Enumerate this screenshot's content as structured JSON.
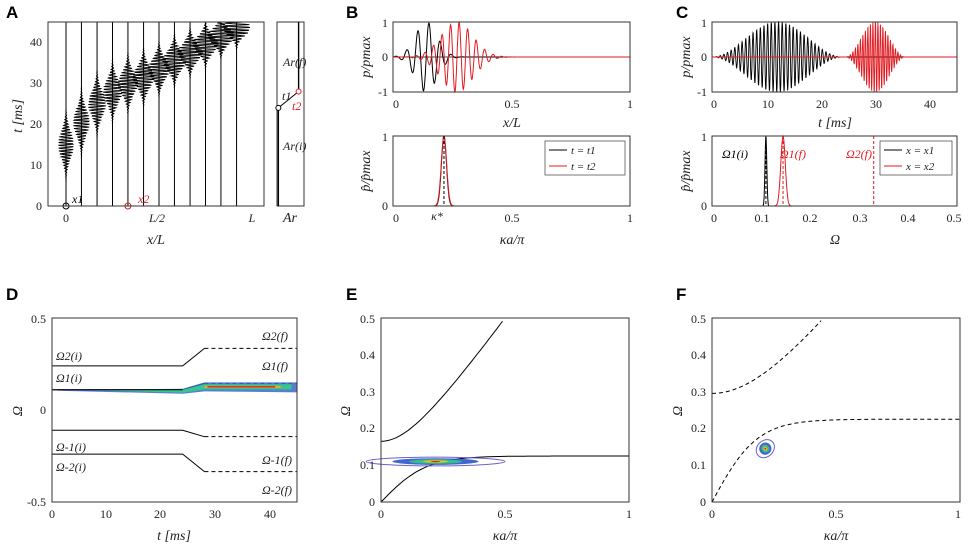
{
  "colors": {
    "fine_a": "#000000",
    "fine_b": "#e11b22",
    "frame": "#333333",
    "band": "#000000"
  },
  "panels": [
    {
      "label": "A",
      "xlabel": "x/L",
      "ylabel": "t [ms]",
      "xticks": [
        "0",
        "L/2",
        "L"
      ],
      "yticks": [
        "0",
        "10",
        "20",
        "30",
        "40"
      ],
      "ann": {
        "x1": "x1",
        "x2": "x2"
      },
      "ar": {
        "xlabel": "Ar",
        "ar_f": "Ar(f)",
        "ar_i": "Ar(i)",
        "t1": "t1",
        "t2": "t2"
      }
    },
    {
      "label": "B",
      "top": {
        "ylabel": "p/pmax",
        "xlabel": "x/L",
        "xticks": [
          "0",
          "0.5",
          "1"
        ],
        "yticks": [
          "1",
          "0",
          "-1"
        ]
      },
      "bottom": {
        "ylabel": "p̂/p̂max",
        "xlabel": "κa/π",
        "xticks": [
          "0",
          "0.5",
          "1"
        ],
        "yticks": [
          "1",
          "0"
        ],
        "kappa_star": "κ*",
        "legend": [
          "t = t1",
          "t = t2"
        ]
      }
    },
    {
      "label": "C",
      "top": {
        "ylabel": "p/pmax",
        "xlabel": "t [ms]",
        "xticks": [
          "0",
          "10",
          "20",
          "30",
          "40"
        ],
        "yticks": [
          "1",
          "0",
          "-1"
        ]
      },
      "bottom": {
        "ylabel": "p̂/p̂max",
        "xlabel": "Ω",
        "xticks": [
          "0",
          "0.1",
          "0.2",
          "0.3",
          "0.4",
          "0.5"
        ],
        "yticks": [
          "1",
          "0"
        ],
        "legend": [
          "x = x1",
          "x = x2"
        ],
        "ann": {
          "o1i": "Ω1(i)",
          "o1f": "Ω1(f)",
          "o2f": "Ω2(f)"
        }
      }
    },
    {
      "label": "D",
      "xlabel": "t [ms]",
      "ylabel": "Ω",
      "xticks": [
        "0",
        "10",
        "20",
        "30",
        "40"
      ],
      "yticks": [
        "0.5",
        "0",
        "-0.5"
      ],
      "branch_labels": [
        "Ω2(i)",
        "Ω1(i)",
        "Ω-1(i)",
        "Ω-2(i)",
        "Ω2(f)",
        "Ω1(f)",
        "Ω-1(f)",
        "Ω-2(f)"
      ]
    },
    {
      "label": "E",
      "xlabel": "κa/π",
      "ylabel": "Ω",
      "xticks": [
        "0",
        "0.5",
        "1"
      ],
      "yticks": [
        "0",
        "0.1",
        "0.2",
        "0.3",
        "0.4",
        "0.5"
      ]
    },
    {
      "label": "F",
      "xlabel": "κa/π",
      "ylabel": "Ω",
      "xticks": [
        "0",
        "0.5",
        "1"
      ],
      "yticks": [
        "0",
        "0.1",
        "0.2",
        "0.3",
        "0.4",
        "0.5"
      ]
    }
  ],
  "chart_data": [
    {
      "panel": "A",
      "type": "line",
      "description": "pressure envelopes at successive positions along the rod, pulse time vs position",
      "xlim": [
        0,
        1
      ],
      "ylim": [
        0,
        45
      ],
      "positions": [
        0.0,
        0.083,
        0.167,
        0.25,
        0.333,
        0.417,
        0.5,
        0.583,
        0.667,
        0.75,
        0.833,
        0.917
      ],
      "arrival_ms": [
        15.0,
        20.5,
        25.0,
        28.0,
        30.0,
        31.5,
        33.5,
        35.5,
        37.5,
        39.5,
        41.5,
        43.5
      ],
      "markers": [
        {
          "name": "x1",
          "x": 0.0,
          "t": 0
        },
        {
          "name": "x2",
          "x": 0.333,
          "t": 0
        }
      ]
    },
    {
      "panel": "A-Ar",
      "type": "line",
      "xlim": [
        0,
        1
      ],
      "ylim": [
        0,
        45
      ],
      "points": [
        {
          "name": "t1",
          "x": 0.05,
          "t": 24
        },
        {
          "name": "t2",
          "x": 0.8,
          "t": 28
        }
      ]
    },
    {
      "panel": "B-top",
      "type": "line",
      "xlabel": "x/L",
      "ylabel": "p/pmax",
      "xlim": [
        0,
        1
      ],
      "ylim": [
        -1,
        1
      ],
      "series": [
        {
          "name": "t = t1",
          "center": 0.14,
          "width": 0.065,
          "wavelength": 0.047
        },
        {
          "name": "t = t2",
          "center": 0.27,
          "width": 0.095,
          "wavelength": 0.036
        }
      ]
    },
    {
      "panel": "B-bottom",
      "type": "line",
      "xlabel": "κa/π",
      "ylabel": "p̂/p̂max",
      "xlim": [
        0,
        1
      ],
      "ylim": [
        0,
        1
      ],
      "series": [
        {
          "name": "t = t1",
          "peak": 0.215,
          "width": 0.015
        },
        {
          "name": "t = t2",
          "peak": 0.215,
          "width": 0.016
        }
      ],
      "kappa_star": 0.215
    },
    {
      "panel": "C-top",
      "type": "line",
      "xlabel": "t [ms]",
      "ylabel": "p/pmax",
      "xlim": [
        0,
        45
      ],
      "ylim": [
        -1,
        1
      ],
      "series": [
        {
          "name": "x = x1",
          "center": 12,
          "halfwidth": 12,
          "period": 0.67
        },
        {
          "name": "x = x2",
          "center": 30,
          "halfwidth": 5.5,
          "period": 0.46
        }
      ]
    },
    {
      "panel": "C-bottom",
      "type": "line",
      "xlabel": "Ω",
      "ylabel": "p̂/p̂max",
      "xlim": [
        0,
        0.5
      ],
      "ylim": [
        0,
        1
      ],
      "series": [
        {
          "name": "x = x1",
          "peak": 0.11,
          "width": 0.0025
        },
        {
          "name": "x = x2",
          "peak": 0.145,
          "width": 0.0065
        }
      ],
      "vlines": [
        0.11,
        0.145,
        0.33
      ]
    },
    {
      "panel": "D",
      "type": "line",
      "xlabel": "t [ms]",
      "ylabel": "Ω",
      "xlim": [
        0,
        45
      ],
      "ylim": [
        -0.5,
        0.5
      ],
      "branches_initial": [
        0.24,
        0.11,
        -0.11,
        -0.24
      ],
      "branches_final": [
        0.335,
        0.145,
        -0.145,
        -0.335
      ],
      "ramp_ms": [
        24,
        28
      ],
      "contour_y0": 0.11,
      "contour_y1": 0.145
    },
    {
      "panel": "E",
      "type": "line",
      "xlabel": "κa/π",
      "ylabel": "Ω",
      "xlim": [
        0,
        1
      ],
      "ylim": [
        0,
        0.5
      ],
      "lower_branch_limit": 0.125,
      "upper_branch_start": 0.165,
      "upper_branch_reaches_top_at": 0.5,
      "contour": {
        "cx": 0.22,
        "cy": 0.11,
        "rx": 0.28,
        "ry": 0.012
      }
    },
    {
      "panel": "F",
      "type": "line",
      "xlabel": "κa/π",
      "ylabel": "Ω",
      "xlim": [
        0,
        1
      ],
      "ylim": [
        0,
        0.5
      ],
      "lower_branch_limit": 0.225,
      "upper_branch_start": 0.295,
      "upper_branch_reaches_top_at": 0.45,
      "contour": {
        "cx": 0.215,
        "cy": 0.145,
        "rx": 0.04,
        "ry": 0.022
      }
    }
  ]
}
